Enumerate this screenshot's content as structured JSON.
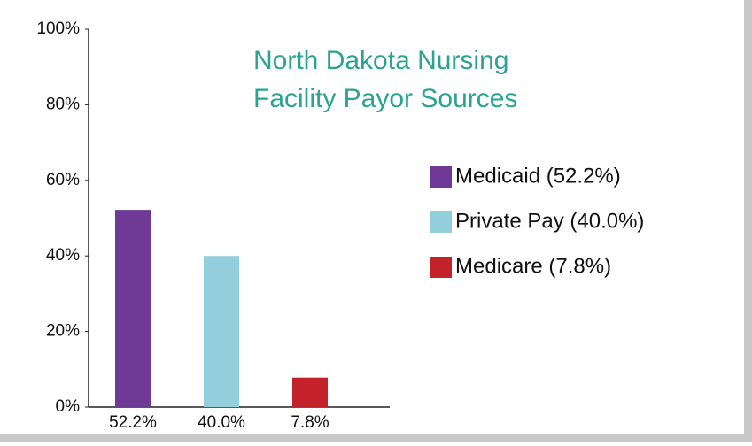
{
  "chart_data": {
    "type": "bar",
    "title": [
      "North Dakota Nursing",
      "Facility Payor Sources"
    ],
    "categories": [
      "52.2%",
      "40.0%",
      "7.8%"
    ],
    "values": [
      52.2,
      40.0,
      7.8
    ],
    "colors": [
      "#6f3996",
      "#92cedb",
      "#c4222a"
    ],
    "legend": [
      "Medicaid (52.2%)",
      "Private Pay (40.0%)",
      "Medicare (7.8%)"
    ],
    "ylim": [
      0,
      100
    ],
    "yticks": [
      {
        "value": 0,
        "label": "0%"
      },
      {
        "value": 20,
        "label": "20%"
      },
      {
        "value": 40,
        "label": "40%"
      },
      {
        "value": 60,
        "label": "60%"
      },
      {
        "value": 80,
        "label": "80%"
      },
      {
        "value": 100,
        "label": "100%"
      }
    ],
    "title_color": "#2aa391"
  }
}
